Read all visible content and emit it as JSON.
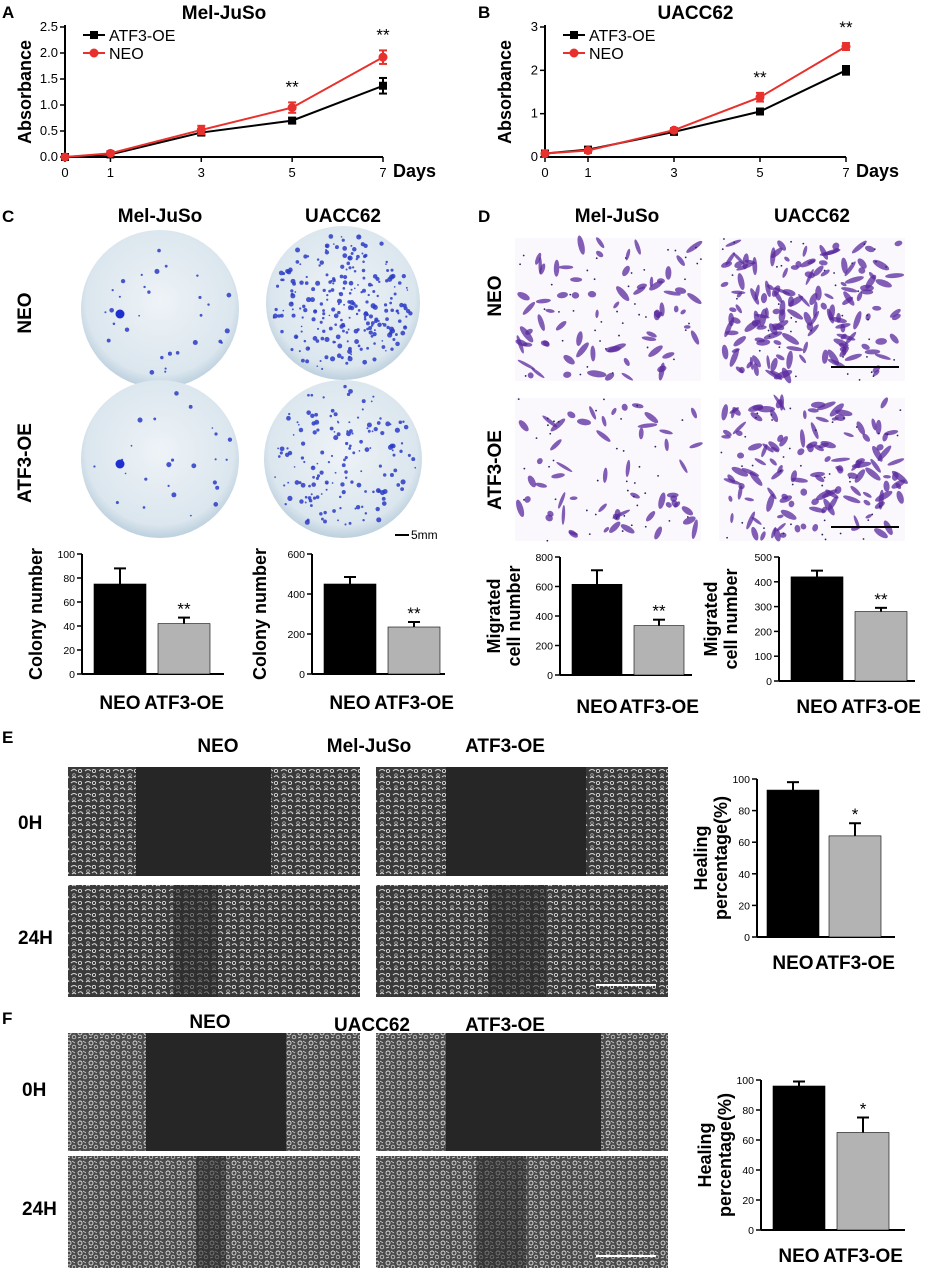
{
  "panels": {
    "A": "A",
    "B": "B",
    "C": "C",
    "D": "D",
    "E": "E",
    "F": "F"
  },
  "cell_lines": {
    "mel": "Mel-JuSo",
    "uacc": "UACC62"
  },
  "groups": {
    "neo": "NEO",
    "atf3": "ATF3-OE"
  },
  "times": {
    "t0": "0H",
    "t24": "24H"
  },
  "scale_bar": "5mm",
  "axis_labels": {
    "absorbance": "Absorbance",
    "days": "Days",
    "colony": "Colony number",
    "migrated_1": "Migrated",
    "migrated_2": "cell number",
    "healing_1": "Healing",
    "healing_2": "percentage(%)"
  },
  "colors": {
    "neo_line": "#e8302c",
    "atf3_line": "#000000",
    "bar_neo": "#000000",
    "bar_atf3": "#b3b3b3",
    "crystal_violet": "#5a2a9e",
    "colony_dish": "#d8e5ee",
    "micro_dark": "#1a1a1a",
    "micro_cells": "#c8c8c8"
  },
  "chart_data": [
    {
      "id": "A",
      "type": "line",
      "title": "Mel-JuSo",
      "xlabel": "Days",
      "ylabel": "Absorbance",
      "x": [
        0,
        1,
        3,
        5,
        7
      ],
      "xticks": [
        "0",
        "1",
        "3",
        "5",
        "7"
      ],
      "ylim": [
        0,
        2.5
      ],
      "yticks": [
        "0.0",
        "0.5",
        "1.0",
        "1.5",
        "2.0",
        "2.5"
      ],
      "legend_position": "top-left",
      "significance": [
        {
          "x": 5,
          "label": "**"
        },
        {
          "x": 7,
          "label": "**"
        }
      ],
      "series": [
        {
          "name": "ATF3-OE",
          "color": "#000000",
          "marker": "square",
          "values": [
            0.0,
            0.05,
            0.47,
            0.7,
            1.37
          ],
          "err": [
            0.01,
            0.02,
            0.05,
            0.05,
            0.15
          ]
        },
        {
          "name": "NEO",
          "color": "#e8302c",
          "marker": "circle",
          "values": [
            0.0,
            0.07,
            0.52,
            0.95,
            1.92
          ],
          "err": [
            0.01,
            0.02,
            0.08,
            0.1,
            0.13
          ]
        }
      ]
    },
    {
      "id": "B",
      "type": "line",
      "title": "UACC62",
      "xlabel": "Days",
      "ylabel": "Absorbance",
      "x": [
        0,
        1,
        3,
        5,
        7
      ],
      "xticks": [
        "0",
        "1",
        "3",
        "5",
        "7"
      ],
      "ylim": [
        0,
        3
      ],
      "yticks": [
        "0",
        "1",
        "2",
        "3"
      ],
      "legend_position": "top-left",
      "significance": [
        {
          "x": 5,
          "label": "**"
        },
        {
          "x": 7,
          "label": "**"
        }
      ],
      "series": [
        {
          "name": "ATF3-OE",
          "color": "#000000",
          "marker": "square",
          "values": [
            0.08,
            0.17,
            0.58,
            1.05,
            2.0
          ],
          "err": [
            0.02,
            0.03,
            0.04,
            0.06,
            0.1
          ]
        },
        {
          "name": "NEO",
          "color": "#e8302c",
          "marker": "circle",
          "values": [
            0.08,
            0.15,
            0.62,
            1.38,
            2.55
          ],
          "err": [
            0.02,
            0.03,
            0.05,
            0.1,
            0.08
          ]
        }
      ]
    },
    {
      "id": "C1",
      "type": "bar",
      "ylabel": "Colony number",
      "categories": [
        "NEO",
        "ATF3-OE"
      ],
      "values": [
        75,
        42
      ],
      "err": [
        13,
        5
      ],
      "ylim": [
        0,
        100
      ],
      "yticks": [
        "0",
        "20",
        "40",
        "60",
        "80",
        "100"
      ],
      "significance": [
        {
          "index": 1,
          "label": "**"
        }
      ]
    },
    {
      "id": "C2",
      "type": "bar",
      "ylabel": "Colony number",
      "categories": [
        "NEO",
        "ATF3-OE"
      ],
      "values": [
        450,
        235
      ],
      "err": [
        35,
        25
      ],
      "ylim": [
        0,
        600
      ],
      "yticks": [
        "0",
        "200",
        "400",
        "600"
      ],
      "significance": [
        {
          "index": 1,
          "label": "**"
        }
      ]
    },
    {
      "id": "D1",
      "type": "bar",
      "ylabel": "Migrated cell number",
      "categories": [
        "NEO",
        "ATF3-OE"
      ],
      "values": [
        615,
        335
      ],
      "err": [
        95,
        40
      ],
      "ylim": [
        0,
        800
      ],
      "yticks": [
        "0",
        "200",
        "400",
        "600",
        "800"
      ],
      "significance": [
        {
          "index": 1,
          "label": "**"
        }
      ]
    },
    {
      "id": "D2",
      "type": "bar",
      "ylabel": "Migrated cell number",
      "categories": [
        "NEO",
        "ATF3-OE"
      ],
      "values": [
        420,
        280
      ],
      "err": [
        25,
        15
      ],
      "ylim": [
        0,
        500
      ],
      "yticks": [
        "0",
        "100",
        "200",
        "300",
        "400",
        "500"
      ],
      "significance": [
        {
          "index": 1,
          "label": "**"
        }
      ]
    },
    {
      "id": "E",
      "type": "bar",
      "ylabel": "Healing percentage(%)",
      "categories": [
        "NEO",
        "ATF3-OE"
      ],
      "values": [
        93,
        64
      ],
      "err": [
        5,
        8
      ],
      "ylim": [
        0,
        100
      ],
      "yticks": [
        "0",
        "20",
        "40",
        "60",
        "80",
        "100"
      ],
      "significance": [
        {
          "index": 1,
          "label": "*"
        }
      ]
    },
    {
      "id": "F",
      "type": "bar",
      "ylabel": "Healing percentage(%)",
      "categories": [
        "NEO",
        "ATF3-OE"
      ],
      "values": [
        96,
        65
      ],
      "err": [
        3,
        10
      ],
      "ylim": [
        0,
        100
      ],
      "yticks": [
        "0",
        "20",
        "40",
        "60",
        "80",
        "100"
      ],
      "significance": [
        {
          "index": 1,
          "label": "*"
        }
      ]
    }
  ]
}
